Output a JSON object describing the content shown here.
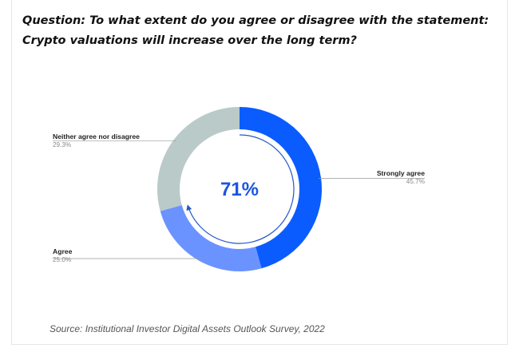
{
  "title": {
    "line1": "Question: To what extent do you agree or disagree with the statement:",
    "line2": "Crypto valuations will increase over the long term?"
  },
  "source": "Source: Institutional Investor Digital Assets Outlook Survey, 2022",
  "chart_data": {
    "type": "pie",
    "variant": "donut",
    "center_label": "71%",
    "categories": [
      "Strongly agree",
      "Agree",
      "Neither agree nor disagree"
    ],
    "values": [
      45.7,
      25.0,
      29.3
    ],
    "value_labels": [
      "45.7%",
      "25.0%",
      "29.3%"
    ],
    "colors": [
      "#0a5cff",
      "#6b93ff",
      "#b9cac9"
    ],
    "arrow_color": "#2457c7"
  }
}
